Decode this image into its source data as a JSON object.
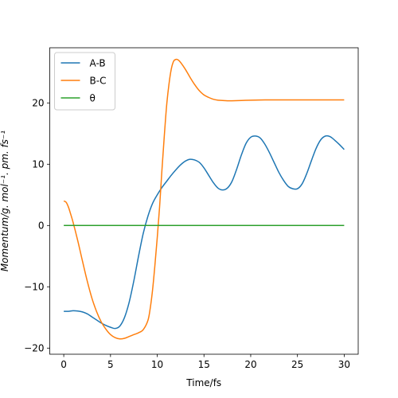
{
  "chart_data": {
    "type": "line",
    "xlabel": "Time/fs",
    "ylabel": "Momentum/g. mol⁻¹. pm. fs⁻¹",
    "xlim": [
      -1.5,
      31.5
    ],
    "ylim": [
      -21,
      29
    ],
    "xticks": [
      0,
      5,
      10,
      15,
      20,
      25,
      30
    ],
    "yticks": [
      -20,
      -10,
      0,
      10,
      20
    ],
    "legend_position": "top-left",
    "grid": false,
    "series": [
      {
        "name": "A-B",
        "color": "#1f77b4",
        "x": [
          0,
          0.5,
          1,
          1.5,
          2,
          2.5,
          3,
          3.5,
          4,
          4.5,
          5,
          5.5,
          6,
          6.5,
          7,
          7.5,
          8,
          8.5,
          9,
          9.5,
          10,
          10.5,
          11,
          11.5,
          12,
          12.5,
          13,
          13.5,
          14,
          14.5,
          15,
          15.5,
          16,
          16.5,
          17,
          17.5,
          18,
          18.5,
          19,
          19.5,
          20,
          20.5,
          21,
          21.5,
          22,
          22.5,
          23,
          23.5,
          24,
          24.5,
          25,
          25.5,
          26,
          26.5,
          27,
          27.5,
          28,
          28.5,
          29,
          29.5,
          30
        ],
        "y": [
          -14,
          -14,
          -13.9,
          -13.95,
          -14.1,
          -14.4,
          -14.9,
          -15.4,
          -15.9,
          -16.3,
          -16.6,
          -16.8,
          -16.4,
          -15,
          -12.5,
          -9,
          -5,
          -1.3,
          1.5,
          3.6,
          5,
          6.2,
          7.2,
          8.2,
          9.1,
          9.9,
          10.5,
          10.8,
          10.7,
          10.3,
          9.4,
          8.2,
          7,
          6.1,
          5.8,
          6.1,
          7.2,
          9.2,
          11.5,
          13.4,
          14.4,
          14.6,
          14.3,
          13.3,
          11.9,
          10.3,
          8.7,
          7.4,
          6.4,
          6,
          6,
          6.8,
          8.5,
          10.6,
          12.6,
          14,
          14.6,
          14.5,
          13.9,
          13.2,
          12.4
        ]
      },
      {
        "name": "B-C",
        "color": "#ff7f0e",
        "x": [
          0,
          0.25,
          0.5,
          0.75,
          1,
          1.5,
          2,
          2.5,
          3,
          3.5,
          4,
          4.5,
          5,
          5.5,
          6,
          6.5,
          7,
          7.5,
          8,
          8.5,
          9,
          9.25,
          9.5,
          9.75,
          10,
          10.25,
          10.5,
          10.75,
          11,
          11.25,
          11.5,
          11.75,
          12,
          12.25,
          12.5,
          13,
          13.5,
          14,
          14.5,
          15,
          15.5,
          16,
          16.5,
          17,
          17.5,
          18,
          19,
          20,
          21,
          22,
          23,
          24,
          25,
          26,
          27,
          28,
          29,
          30
        ],
        "y": [
          4,
          3.8,
          3,
          1.8,
          0.5,
          -2.5,
          -5.8,
          -9,
          -11.8,
          -14,
          -15.7,
          -16.9,
          -17.8,
          -18.3,
          -18.5,
          -18.4,
          -18.1,
          -17.8,
          -17.5,
          -17,
          -15.5,
          -13.5,
          -10.5,
          -6.5,
          -2,
          3,
          9,
          14.5,
          19.5,
          23,
          25.5,
          26.8,
          27.1,
          27,
          26.6,
          25.5,
          24.2,
          23,
          22,
          21.3,
          20.9,
          20.6,
          20.45,
          20.4,
          20.35,
          20.35,
          20.4,
          20.45,
          20.48,
          20.5,
          20.5,
          20.5,
          20.5,
          20.5,
          20.5,
          20.5,
          20.5,
          20.5
        ]
      },
      {
        "name": "θ",
        "color": "#2ca02c",
        "x": [
          0,
          30
        ],
        "y": [
          0,
          0
        ]
      }
    ]
  }
}
